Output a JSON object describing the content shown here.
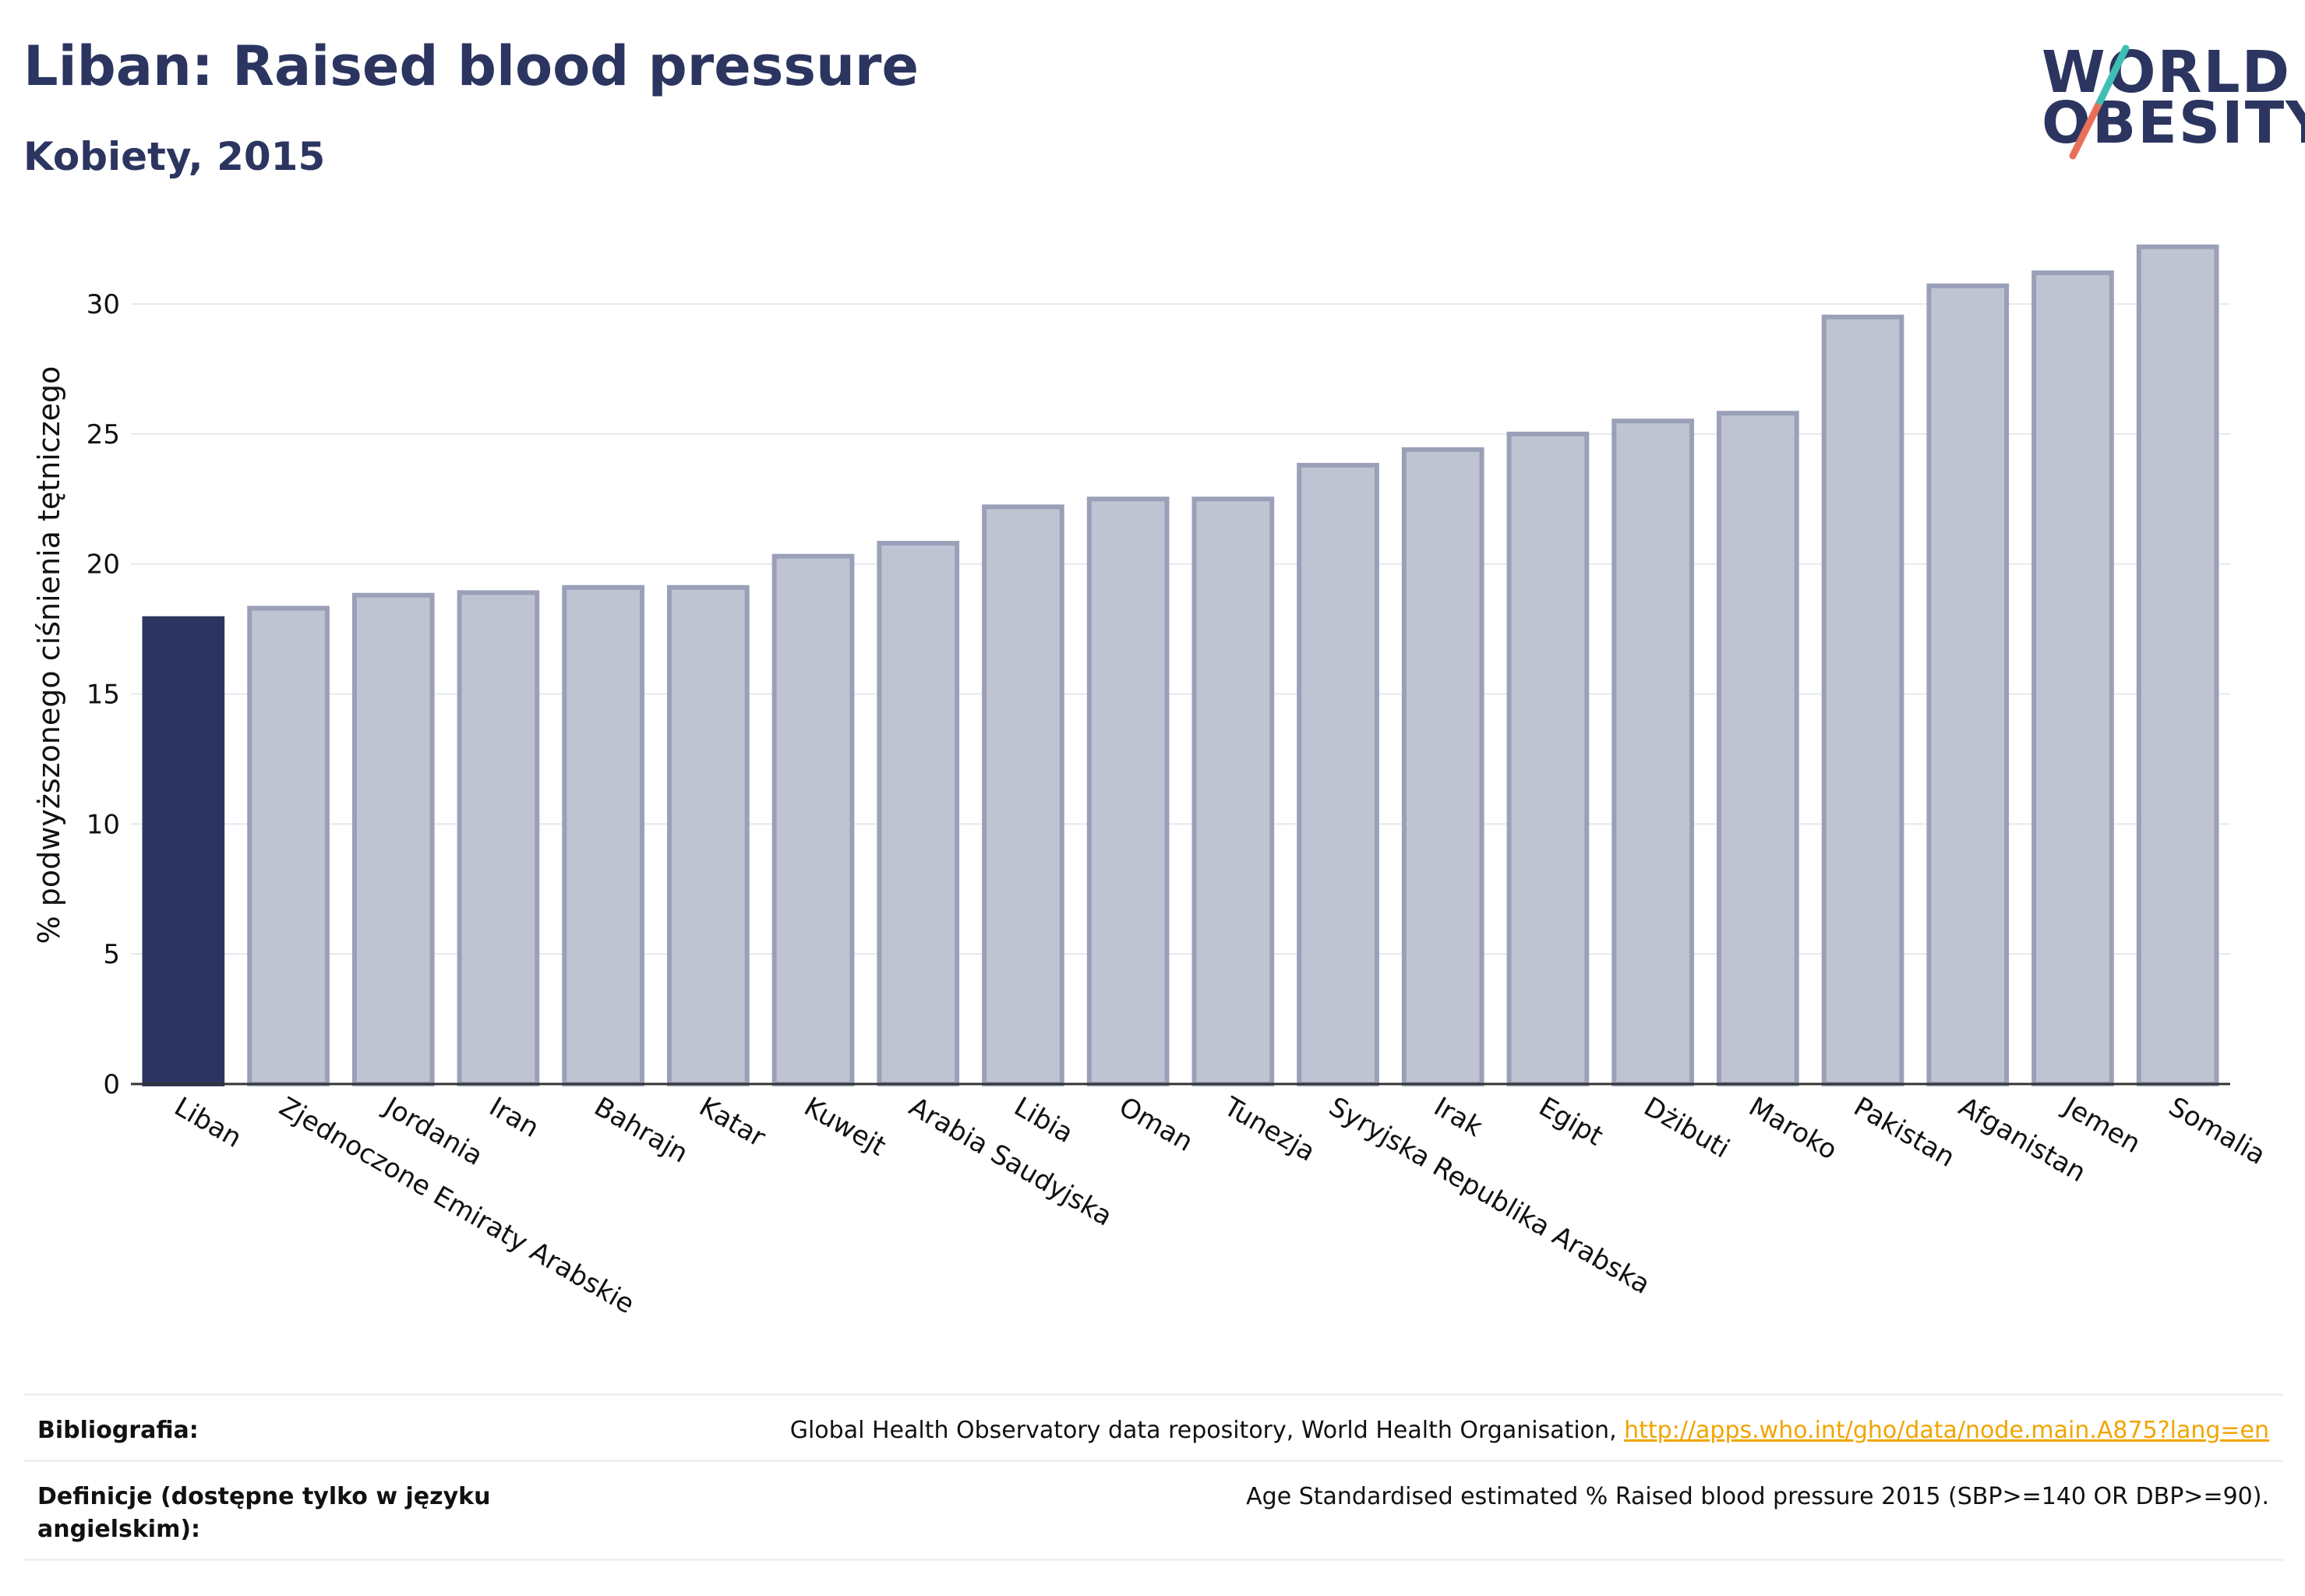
{
  "header": {
    "title": "Liban: Raised blood pressure",
    "subtitle": "Kobiety, 2015"
  },
  "logo": {
    "line1": "WORLD",
    "line2": "OBESITY",
    "accent_teal": "#3fbfb4",
    "accent_coral": "#e8705a"
  },
  "colors": {
    "highlight": "#2b3560",
    "bar_fill": "#c0c4d2",
    "bar_stroke": "#9aa0b8",
    "grid": "#e6e8ee"
  },
  "chart_data": {
    "type": "bar",
    "ylabel": "% podwyższonego ciśnienia tętniczego",
    "ylim": [
      0,
      33
    ],
    "yticks": [
      0,
      5,
      10,
      15,
      20,
      25,
      30
    ],
    "highlight": "Liban",
    "categories": [
      "Liban",
      "Zjednoczone Emiraty Arabskie",
      "Jordania",
      "Iran",
      "Bahrajn",
      "Katar",
      "Kuwejt",
      "Arabia Saudyjska",
      "Libia",
      "Oman",
      "Tunezja",
      "Syryjska Republika Arabska",
      "Irak",
      "Egipt",
      "Dżibuti",
      "Maroko",
      "Pakistan",
      "Afganistan",
      "Jemen",
      "Somalia"
    ],
    "values": [
      17.9,
      18.3,
      18.8,
      18.9,
      19.1,
      19.1,
      20.3,
      20.8,
      22.2,
      22.5,
      22.5,
      23.8,
      24.4,
      25.0,
      25.5,
      25.8,
      29.5,
      30.7,
      31.2,
      32.2
    ]
  },
  "footer": {
    "bibliography_label": "Bibliografia:",
    "bibliography_text": "Global Health Observatory data repository, World Health Organisation, ",
    "bibliography_link": "http://apps.who.int/gho/data/node.main.A875?lang=en",
    "definitions_label": "Definicje (dostępne tylko w języku angielskim):",
    "definitions_text": "Age Standardised estimated % Raised blood pressure 2015 (SBP>=140 OR DBP>=90)."
  }
}
